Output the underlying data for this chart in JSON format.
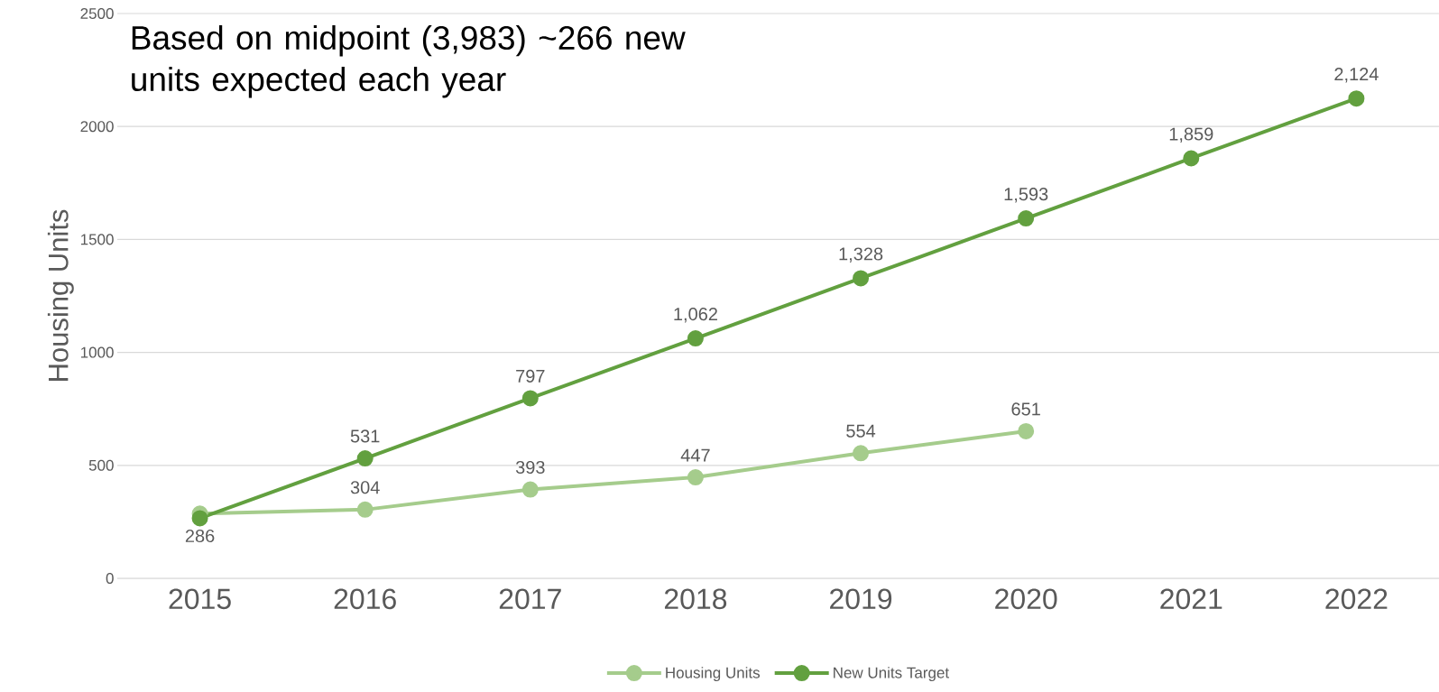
{
  "chart_data": {
    "type": "line",
    "ylabel": "Housing Units",
    "categories": [
      "2015",
      "2016",
      "2017",
      "2018",
      "2019",
      "2020",
      "2021",
      "2022"
    ],
    "series": [
      {
        "name": "Housing Units",
        "color": "#a5cc8c",
        "values": [
          286,
          304,
          393,
          447,
          554,
          651,
          null,
          null
        ],
        "value_labels": [
          "286",
          "304",
          "393",
          "447",
          "554",
          "651",
          null,
          null
        ]
      },
      {
        "name": "New Units Target",
        "color": "#62a03f",
        "values": [
          266,
          531,
          797,
          1062,
          1328,
          1593,
          1859,
          2124
        ],
        "value_labels": [
          null,
          "531",
          "797",
          "1,062",
          "1,328",
          "1,593",
          "1,859",
          "2,124"
        ]
      }
    ],
    "ylim": [
      0,
      2500
    ],
    "yticks": [
      0,
      500,
      1000,
      1500,
      2000,
      2500
    ],
    "grid": "y",
    "legend": "bottom",
    "marker": "circle",
    "line_style": "solid",
    "annotations": [
      "Based on midpoint (3,983) ~266 new units expected each year"
    ]
  }
}
